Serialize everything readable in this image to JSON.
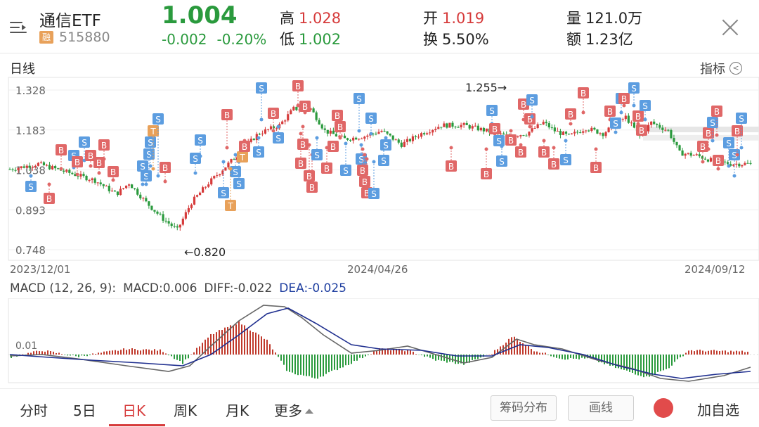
{
  "header": {
    "name": "通信ETF",
    "financing_tag": "融",
    "code": "515880",
    "price": "1.004",
    "change": "-0.002",
    "change_pct": "-0.20%",
    "high_label": "高",
    "high_value": "1.028",
    "low_label": "低",
    "low_value": "1.002",
    "open_label": "开",
    "open_value": "1.019",
    "turnover_label": "换",
    "turnover_value": "5.50%",
    "volume_label": "量",
    "volume_value": "121.0万",
    "amount_label": "额",
    "amount_value": "1.23亿",
    "icons": {
      "menu": "menu-lines-icon",
      "close": "close-icon"
    }
  },
  "chart": {
    "section_title": "日线",
    "indicator_label": "指标",
    "indicator_icon": "chevron-left-circle-icon"
  },
  "chart_data": [
    {
      "type": "candlestick",
      "title": "日线",
      "y_ticks": [
        "1.328",
        "1.183",
        "1.038",
        "0.893",
        "0.748"
      ],
      "ylim": [
        0.748,
        1.328
      ],
      "x_ticks": [
        "2023/12/01",
        "2024/04/26",
        "2024/09/12"
      ],
      "annotations": [
        {
          "text": "←0.820",
          "value": 0.82,
          "kind": "low"
        },
        {
          "text": "1.255→",
          "value": 1.255,
          "kind": "high"
        }
      ],
      "signal_labels": {
        "buy": "B",
        "sell": "S",
        "t": "T"
      },
      "colors": {
        "up": "#d63b3b",
        "down": "#2a9a3d",
        "buy": "#e06767",
        "sell": "#5c9de0",
        "t": "#e8a15a"
      },
      "grid": true
    },
    {
      "type": "macd",
      "params": "MACD (12, 26, 9):",
      "macd_label": "MACD:0.006",
      "diff_label": "DIFF:-0.022",
      "dea_label": "DEA:-0.025",
      "y_tick": "0.01",
      "colors": {
        "diff": "#666666",
        "dea": "#1f2f8f",
        "pos": "#c0392b",
        "neg": "#2a9a3d"
      }
    }
  ],
  "tabs": {
    "items": [
      "分时",
      "5日",
      "日K",
      "周K",
      "月K",
      "更多"
    ],
    "active": "日K",
    "chips_label": "筹码分布",
    "draw_label": "画线",
    "add_label": "加自选"
  }
}
